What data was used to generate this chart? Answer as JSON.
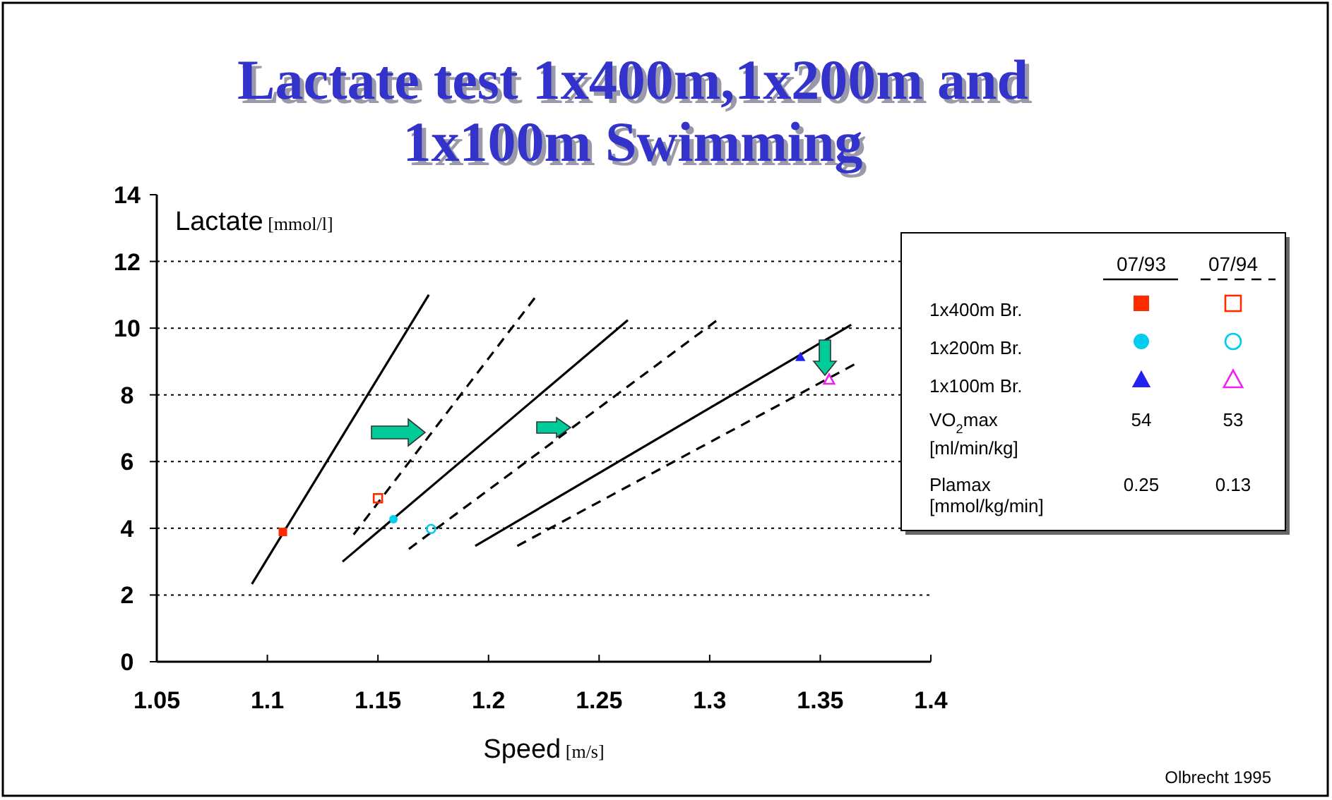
{
  "chart_data": {
    "type": "line",
    "title": "Lactate test 1x400m,1x200m and 1x100m Swimming",
    "xlabel": "Speed [m/s]",
    "ylabel": "Lactate [mmol/l]",
    "xlim": [
      1.05,
      1.4
    ],
    "xticks": [
      1.05,
      1.1,
      1.15,
      1.2,
      1.25,
      1.3,
      1.35,
      1.4
    ],
    "ylim": [
      0,
      14
    ],
    "yticks": [
      0,
      2,
      4,
      6,
      8,
      10,
      12,
      14
    ],
    "grid": "y",
    "series": [
      {
        "color": "#000000",
        "line_style": "solid",
        "marker": "none",
        "x": [
          1.093,
          1.173
        ],
        "values": [
          2.33,
          11.0
        ]
      },
      {
        "color": "#000000",
        "line_style": "dashed",
        "marker": "none",
        "x": [
          1.139,
          1.222
        ],
        "values": [
          3.81,
          11.0
        ]
      },
      {
        "color": "#000000",
        "line_style": "solid",
        "marker": "none",
        "x": [
          1.134,
          1.263
        ],
        "values": [
          3.0,
          10.24
        ]
      },
      {
        "color": "#000000",
        "line_style": "dashed",
        "marker": "none",
        "x": [
          1.164,
          1.305
        ],
        "values": [
          3.38,
          10.32
        ]
      },
      {
        "color": "#000000",
        "line_style": "solid",
        "marker": "none",
        "x": [
          1.194,
          1.364
        ],
        "values": [
          3.47,
          10.1
        ]
      },
      {
        "color": "#000000",
        "line_style": "dashed",
        "marker": "none",
        "x": [
          1.213,
          1.367
        ],
        "values": [
          3.47,
          8.97
        ]
      },
      {
        "type": "scatter",
        "color": "#ff2a00",
        "marker": "square",
        "x": [
          1.107
        ],
        "values": [
          3.89
        ]
      },
      {
        "type": "scatter",
        "color": "#ff2a00",
        "marker": "square",
        "x": [
          1.15
        ],
        "values": [
          4.9
        ]
      },
      {
        "type": "scatter",
        "color": "#00ccee",
        "marker": "circle",
        "x": [
          1.157
        ],
        "values": [
          4.27
        ]
      },
      {
        "type": "scatter",
        "color": "#00ccee",
        "marker": "circle",
        "x": [
          1.174
        ],
        "values": [
          3.98
        ]
      },
      {
        "type": "scatter",
        "color": "#2222ee",
        "marker": "triangle",
        "x": [
          1.341
        ],
        "values": [
          9.14
        ]
      },
      {
        "type": "scatter",
        "color": "#ee22ee",
        "marker": "triangle",
        "x": [
          1.354
        ],
        "values": [
          8.46
        ]
      }
    ],
    "annotations": [
      "07/93",
      "07/94",
      "1x400m Br.",
      "1x200m Br.",
      "1x100m Br.",
      "VO$_{2}$max",
      "[ml/min/kg]",
      "54",
      "53",
      "Plamax",
      "[mmol/kg/min]",
      "0.25",
      "0.13",
      "Olbrecht 1995"
    ]
  }
}
